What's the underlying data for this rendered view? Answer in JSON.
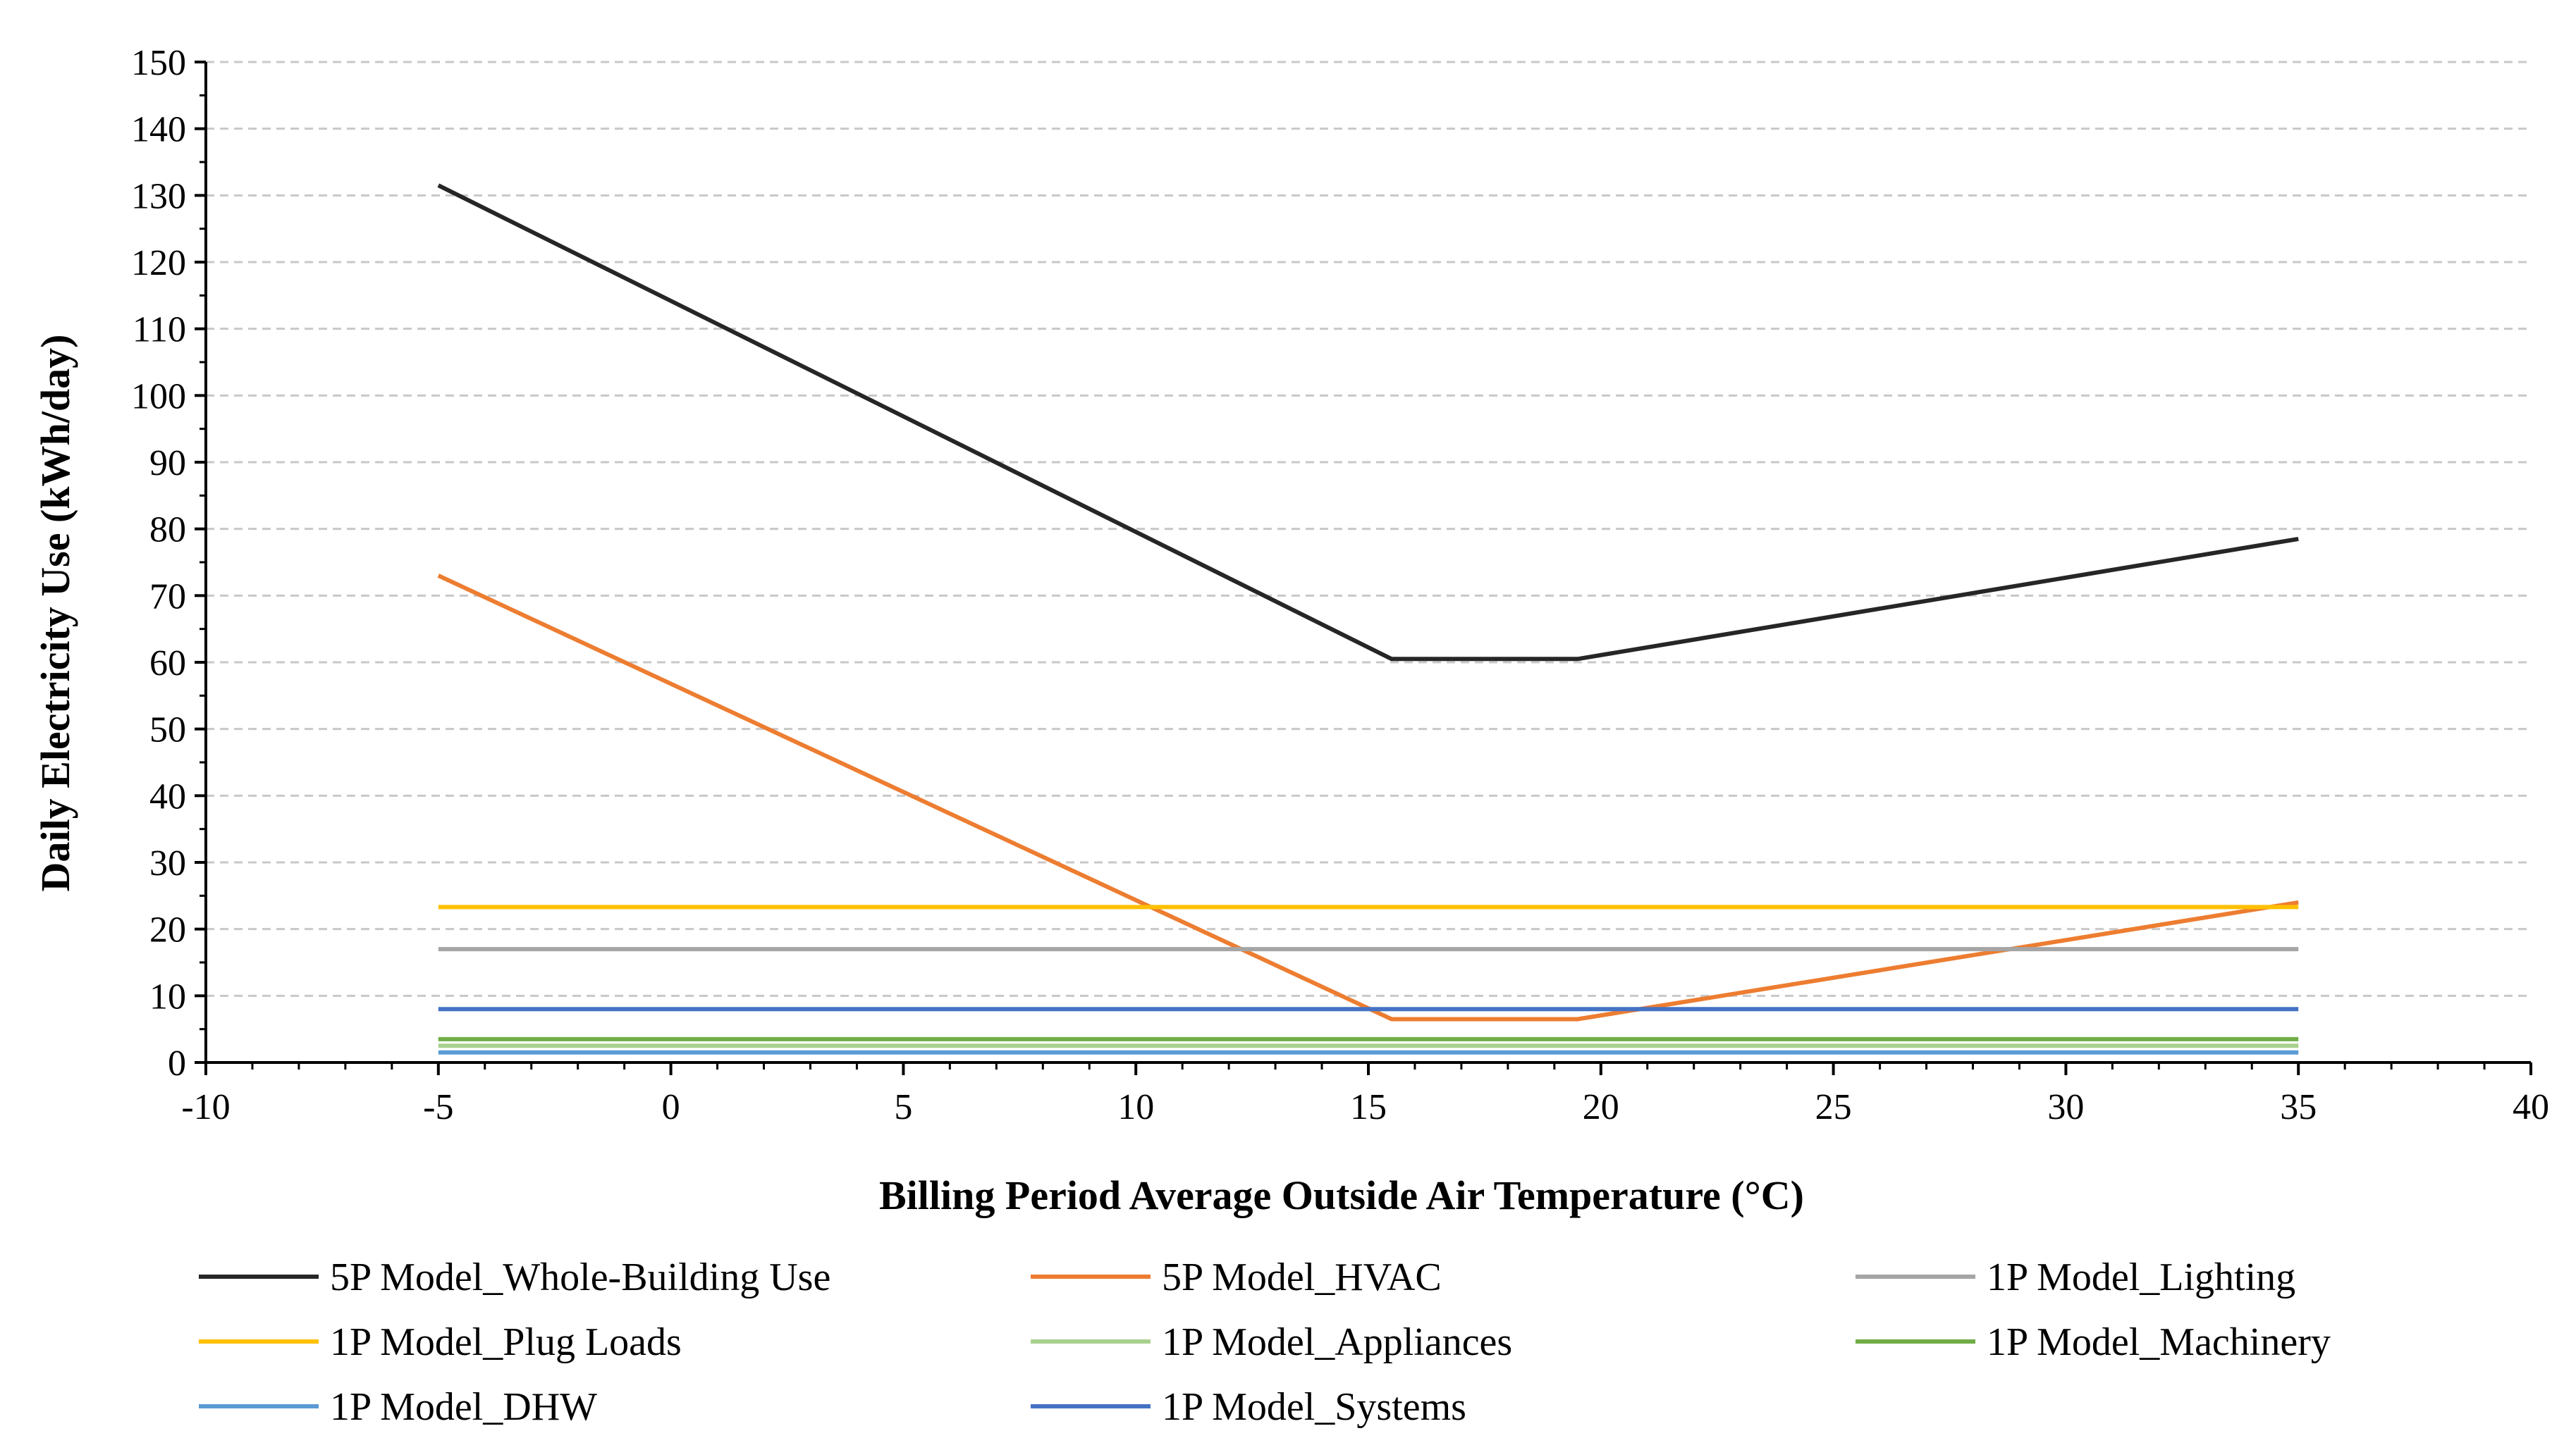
{
  "chart_data": {
    "type": "line",
    "title": "",
    "xlabel": "Billing Period Average Outside Air Temperature (°C)",
    "ylabel": "Daily Electricity Use  (kWh/day)",
    "xlim": [
      -10,
      40
    ],
    "ylim": [
      0,
      150
    ],
    "xticks": [
      -10,
      -5,
      0,
      5,
      10,
      15,
      20,
      25,
      30,
      35,
      40
    ],
    "yticks": [
      0,
      10,
      20,
      30,
      40,
      50,
      60,
      70,
      80,
      90,
      100,
      110,
      120,
      130,
      140,
      150
    ],
    "grid": true,
    "legend_position": "bottom",
    "series": [
      {
        "name": "5P Model_Whole-Building Use",
        "color": "#262626",
        "points": [
          [
            -5,
            131.5
          ],
          [
            15.5,
            60.5
          ],
          [
            19.5,
            60.5
          ],
          [
            35,
            78.5
          ]
        ]
      },
      {
        "name": "5P Model_HVAC",
        "color": "#ED7D31",
        "points": [
          [
            -5,
            73
          ],
          [
            15.5,
            6.5
          ],
          [
            19.5,
            6.5
          ],
          [
            35,
            24
          ]
        ]
      },
      {
        "name": "1P Model_Lighting",
        "color": "#A5A5A5",
        "points": [
          [
            -5,
            17
          ],
          [
            35,
            17
          ]
        ]
      },
      {
        "name": "1P Model_Plug Loads",
        "color": "#FFC000",
        "points": [
          [
            -5,
            23.3
          ],
          [
            35,
            23.3
          ]
        ]
      },
      {
        "name": "1P Model_Appliances",
        "color": "#A9D18E",
        "points": [
          [
            -5,
            2.5
          ],
          [
            35,
            2.5
          ]
        ]
      },
      {
        "name": "1P Model_Machinery",
        "color": "#70AD47",
        "points": [
          [
            -5,
            3.5
          ],
          [
            35,
            3.5
          ]
        ]
      },
      {
        "name": "1P Model_DHW",
        "color": "#5B9BD5",
        "points": [
          [
            -5,
            1.5
          ],
          [
            35,
            1.5
          ]
        ]
      },
      {
        "name": "1P Model_Systems",
        "color": "#4472C4",
        "points": [
          [
            -5,
            8
          ],
          [
            35,
            8
          ]
        ]
      }
    ]
  }
}
